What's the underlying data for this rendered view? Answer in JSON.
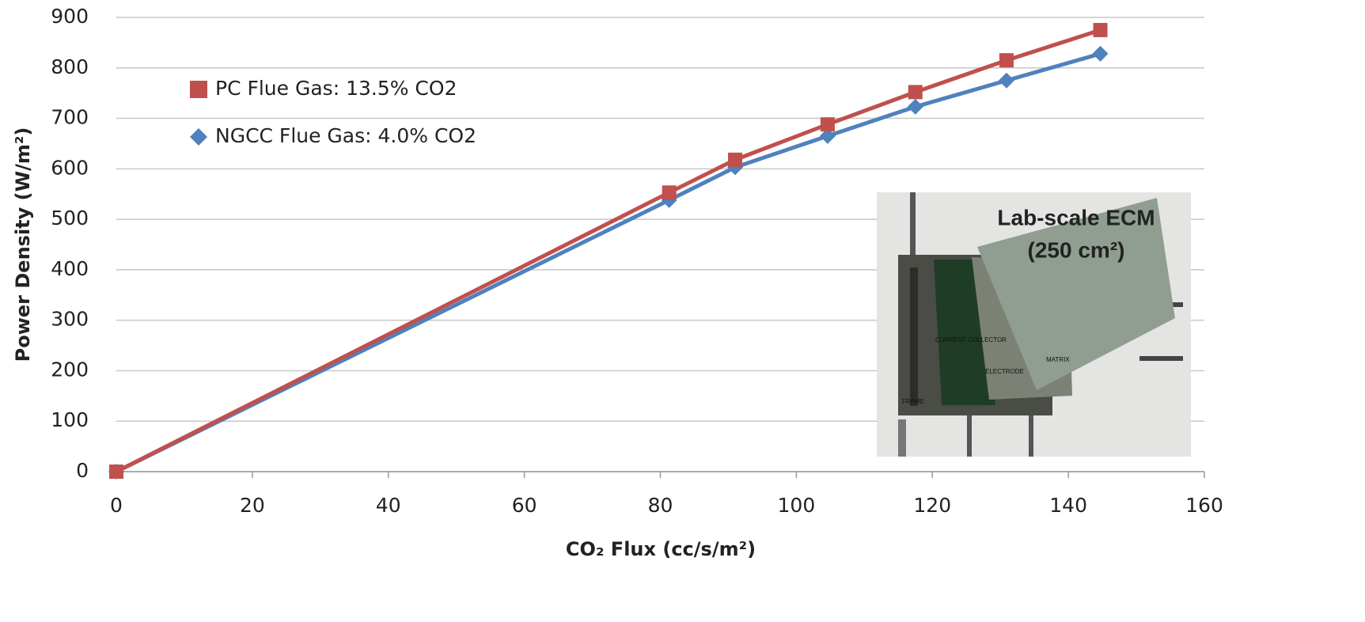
{
  "chart_data": {
    "type": "line",
    "x_label": "CO₂ Flux (cc/s/m²)",
    "y_label": "Power Density (W/m²)",
    "xlim": [
      0,
      160
    ],
    "xticks": [
      0,
      20,
      40,
      60,
      80,
      100,
      120,
      140,
      160
    ],
    "ylim": [
      0,
      900
    ],
    "yticks": [
      0,
      100,
      200,
      300,
      400,
      500,
      600,
      700,
      800,
      900
    ],
    "grid": true,
    "legend": "upper left",
    "series": [
      {
        "name": "PC Flue Gas: 13.5% CO2",
        "color": "#c0504d",
        "marker": "square",
        "x": [
          0,
          81.3,
          91,
          104.6,
          117.5,
          130.9,
          144.7
        ],
        "values": [
          0,
          553,
          618,
          688,
          752,
          815,
          875
        ]
      },
      {
        "name": "NGCC Flue Gas: 4.0% CO2",
        "color": "#4f81bd",
        "marker": "diamond",
        "x": [
          0,
          81.3,
          91,
          104.6,
          117.5,
          130.9,
          144.7
        ],
        "values": [
          0,
          538,
          603,
          665,
          723,
          775,
          828
        ]
      }
    ]
  },
  "inset": {
    "title": "Lab-scale ECM",
    "subtitle": "(250 cm²)",
    "labels": [
      "CURRENT COLLECTOR",
      "ELECTRODE",
      "MATRIX",
      "FRAME"
    ]
  }
}
